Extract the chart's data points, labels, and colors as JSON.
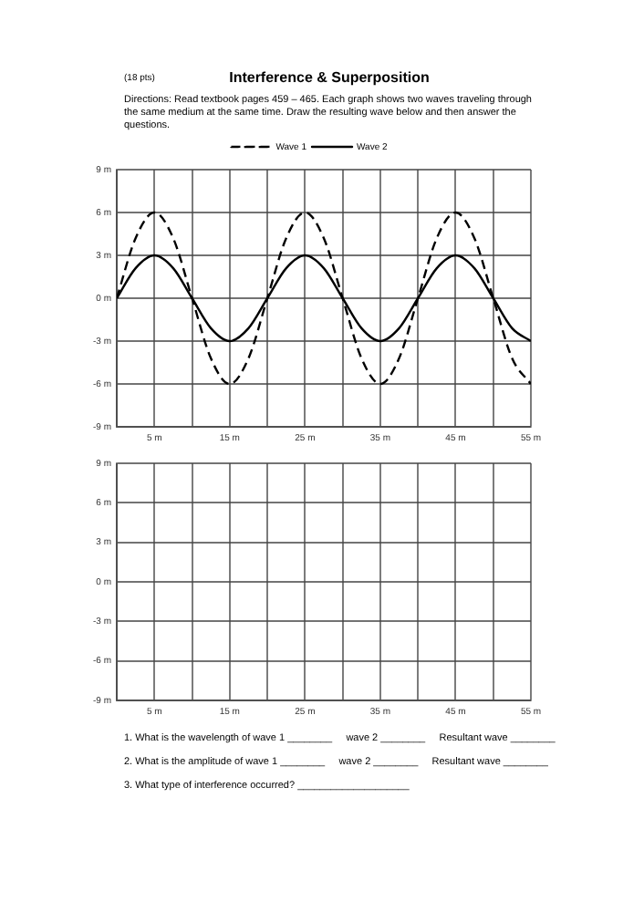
{
  "chart_data": [
    {
      "type": "line",
      "title": "Interference & Superposition",
      "subtitle": "Directions: Read textbook pages 459 – 465.  Each graph shows two waves traveling through the same medium at the same time.  Draw the resulting wave below and then answer the questions.",
      "annotations": [
        "(18 pts)"
      ],
      "x": [
        0,
        2.5,
        5,
        7.5,
        10,
        12.5,
        15,
        17.5,
        20,
        22.5,
        25,
        27.5,
        30,
        32.5,
        35,
        37.5,
        40,
        42.5,
        45,
        47.5,
        50,
        52.5,
        55
      ],
      "series": [
        {
          "name": "Wave 1",
          "color": "#000000",
          "line_style": "dashed",
          "values": [
            0,
            4.2,
            6,
            4.2,
            0,
            -4.2,
            -6,
            -4.2,
            0,
            4.2,
            6,
            4.2,
            0,
            -4.2,
            -6,
            -4.2,
            0,
            4.2,
            6,
            4.2,
            0,
            -4.2,
            -6
          ]
        },
        {
          "name": "Wave 2",
          "color": "#000000",
          "line_style": "solid",
          "values": [
            0,
            2.1,
            3,
            2.1,
            0,
            -2.1,
            -3,
            -2.1,
            0,
            2.1,
            3,
            2.1,
            0,
            -2.1,
            -3,
            -2.1,
            0,
            2.1,
            3,
            2.1,
            0,
            -2.1,
            -3
          ]
        }
      ],
      "xlim": [
        0,
        55
      ],
      "xticks": [
        {
          "value": 0,
          "label": null
        },
        {
          "value": 5,
          "label": "5 m"
        },
        {
          "value": 10,
          "label": null
        },
        {
          "value": 15,
          "label": "15 m"
        },
        {
          "value": 20,
          "label": null
        },
        {
          "value": 25,
          "label": "25 m"
        },
        {
          "value": 30,
          "label": null
        },
        {
          "value": 35,
          "label": "35 m"
        },
        {
          "value": 40,
          "label": null
        },
        {
          "value": 45,
          "label": "45 m"
        },
        {
          "value": 50,
          "label": null
        },
        {
          "value": 55,
          "label": "55 m"
        }
      ],
      "ylim": [
        -9,
        9
      ],
      "yticks": [
        {
          "value": -9,
          "label": "-9 m"
        },
        {
          "value": -6,
          "label": "-6 m"
        },
        {
          "value": -3,
          "label": "-3 m"
        },
        {
          "value": 0,
          "label": "0 m"
        },
        {
          "value": 3,
          "label": "3 m"
        },
        {
          "value": 6,
          "label": "6 m"
        },
        {
          "value": 9,
          "label": "9 m"
        }
      ],
      "grid": true,
      "legend": "top",
      "marker": "none"
    },
    {
      "type": "line",
      "annotations": [
        "1. What is the wavelength of wave 1 ________     wave 2 ________     Resultant wave ________",
        "2. What is the amplitude of wave 1 ________     wave 2 ________     Resultant wave ________",
        "3. What type of interference occurred? ____________________"
      ],
      "xlim": [
        0,
        55
      ],
      "xticks": [
        {
          "value": 0,
          "label": null
        },
        {
          "value": 5,
          "label": "5 m"
        },
        {
          "value": 10,
          "label": null
        },
        {
          "value": 15,
          "label": "15 m"
        },
        {
          "value": 20,
          "label": null
        },
        {
          "value": 25,
          "label": "25 m"
        },
        {
          "value": 30,
          "label": null
        },
        {
          "value": 35,
          "label": "35 m"
        },
        {
          "value": 40,
          "label": null
        },
        {
          "value": 45,
          "label": "45 m"
        },
        {
          "value": 50,
          "label": null
        },
        {
          "value": 55,
          "label": "55 m"
        }
      ],
      "ylim": [
        -9,
        9
      ],
      "yticks": [
        {
          "value": -9,
          "label": "-9 m"
        },
        {
          "value": -6,
          "label": "-6 m"
        },
        {
          "value": -3,
          "label": "-3 m"
        },
        {
          "value": 0,
          "label": "0 m"
        },
        {
          "value": 3,
          "label": "3 m"
        },
        {
          "value": 6,
          "label": "6 m"
        },
        {
          "value": 9,
          "label": "9 m"
        }
      ],
      "grid": true,
      "legend": false
    }
  ]
}
